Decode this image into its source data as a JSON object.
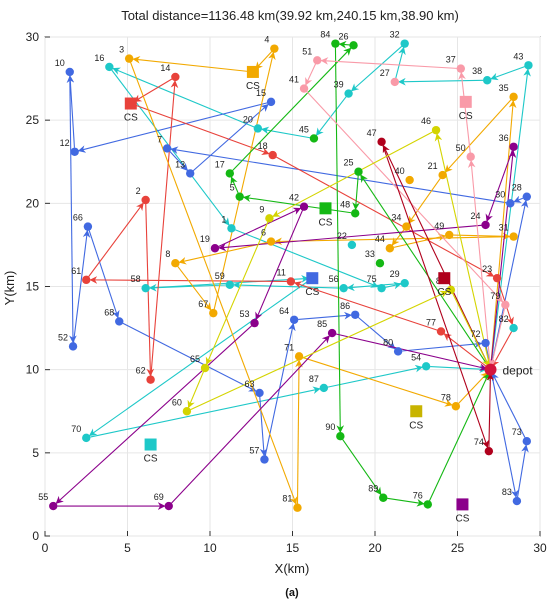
{
  "chart_data": {
    "type": "scatter",
    "title": "Total distance=1136.48 km(39.92 km,240.15 km,38.90 km)",
    "xlabel": "X(km)",
    "ylabel": "Y(km)",
    "caption": "(a)",
    "xlim": [
      0,
      30
    ],
    "ylim": [
      0,
      30
    ],
    "xticks": [
      0,
      5,
      10,
      15,
      20,
      25,
      30
    ],
    "yticks": [
      0,
      5,
      10,
      15,
      20,
      25,
      30
    ],
    "depot": {
      "label": "depot",
      "x": 27.0,
      "y": 10.0,
      "color": "#d4143c"
    },
    "charging_stations": [
      {
        "label": "CS",
        "x": 12.6,
        "y": 27.9,
        "color": "#f2a900"
      },
      {
        "label": "CS",
        "x": 5.2,
        "y": 26.0,
        "color": "#e8423b"
      },
      {
        "label": "CS",
        "x": 25.5,
        "y": 26.1,
        "color": "#f99aa8"
      },
      {
        "label": "CS",
        "x": 17.0,
        "y": 19.7,
        "color": "#14b814"
      },
      {
        "label": "CS",
        "x": 16.2,
        "y": 15.5,
        "color": "#4169e1"
      },
      {
        "label": "CS",
        "x": 24.2,
        "y": 15.5,
        "color": "#b0001c"
      },
      {
        "label": "CS",
        "x": 22.5,
        "y": 7.5,
        "color": "#c8b400"
      },
      {
        "label": "CS",
        "x": 6.4,
        "y": 5.5,
        "color": "#1ec8c8"
      },
      {
        "label": "CS",
        "x": 25.3,
        "y": 1.9,
        "color": "#8b008b"
      }
    ],
    "customers": [
      {
        "id": "1",
        "x": 11.3,
        "y": 18.5,
        "color": "#1ec8c8"
      },
      {
        "id": "2",
        "x": 6.1,
        "y": 20.2,
        "color": "#e8423b"
      },
      {
        "id": "3",
        "x": 5.1,
        "y": 28.7,
        "color": "#f2a900"
      },
      {
        "id": "4",
        "x": 13.9,
        "y": 29.3,
        "color": "#f2a900"
      },
      {
        "id": "5",
        "x": 11.8,
        "y": 20.4,
        "color": "#14b814"
      },
      {
        "id": "6",
        "x": 13.7,
        "y": 17.7,
        "color": "#f2a900"
      },
      {
        "id": "7",
        "x": 7.4,
        "y": 23.3,
        "color": "#4169e1"
      },
      {
        "id": "8",
        "x": 7.9,
        "y": 16.4,
        "color": "#f2a900"
      },
      {
        "id": "9",
        "x": 13.6,
        "y": 19.1,
        "color": "#d4d400"
      },
      {
        "id": "10",
        "x": 1.5,
        "y": 27.9,
        "color": "#4169e1"
      },
      {
        "id": "11",
        "x": 14.9,
        "y": 15.3,
        "color": "#e8423b"
      },
      {
        "id": "12",
        "x": 1.8,
        "y": 23.1,
        "color": "#4169e1"
      },
      {
        "id": "13",
        "x": 8.8,
        "y": 21.8,
        "color": "#4169e1"
      },
      {
        "id": "14",
        "x": 7.9,
        "y": 27.6,
        "color": "#e8423b"
      },
      {
        "id": "15",
        "x": 13.7,
        "y": 26.1,
        "color": "#4169e1"
      },
      {
        "id": "16",
        "x": 3.9,
        "y": 28.2,
        "color": "#1ec8c8"
      },
      {
        "id": "17",
        "x": 11.2,
        "y": 21.8,
        "color": "#14b814"
      },
      {
        "id": "18",
        "x": 13.8,
        "y": 22.9,
        "color": "#e8423b"
      },
      {
        "id": "19",
        "x": 10.3,
        "y": 17.3,
        "color": "#8b008b"
      },
      {
        "id": "20",
        "x": 12.9,
        "y": 24.5,
        "color": "#1ec8c8"
      },
      {
        "id": "21",
        "x": 24.1,
        "y": 21.7,
        "color": "#f2a900"
      },
      {
        "id": "22",
        "x": 18.6,
        "y": 17.5,
        "color": "#1ec8c8"
      },
      {
        "id": "23",
        "x": 27.4,
        "y": 15.5,
        "color": "#e8423b"
      },
      {
        "id": "24",
        "x": 26.7,
        "y": 18.7,
        "color": "#8b008b"
      },
      {
        "id": "25",
        "x": 19.0,
        "y": 21.9,
        "color": "#14b814"
      },
      {
        "id": "26",
        "x": 18.7,
        "y": 29.5,
        "color": "#14b814"
      },
      {
        "id": "27",
        "x": 21.2,
        "y": 27.3,
        "color": "#f99aa8"
      },
      {
        "id": "28",
        "x": 29.2,
        "y": 20.4,
        "color": "#4169e1"
      },
      {
        "id": "29",
        "x": 21.8,
        "y": 15.2,
        "color": "#1ec8c8"
      },
      {
        "id": "30",
        "x": 28.2,
        "y": 20.0,
        "color": "#4169e1"
      },
      {
        "id": "31",
        "x": 28.4,
        "y": 18.0,
        "color": "#f2a900"
      },
      {
        "id": "32",
        "x": 21.8,
        "y": 29.6,
        "color": "#1ec8c8"
      },
      {
        "id": "33",
        "x": 20.3,
        "y": 16.4,
        "color": "#14b814"
      },
      {
        "id": "34",
        "x": 21.9,
        "y": 18.6,
        "color": "#f2a900"
      },
      {
        "id": "35",
        "x": 28.4,
        "y": 26.4,
        "color": "#f2a900"
      },
      {
        "id": "36",
        "x": 28.4,
        "y": 23.4,
        "color": "#8b008b"
      },
      {
        "id": "37",
        "x": 25.2,
        "y": 28.1,
        "color": "#f99aa8"
      },
      {
        "id": "38",
        "x": 26.8,
        "y": 27.4,
        "color": "#1ec8c8"
      },
      {
        "id": "39",
        "x": 18.4,
        "y": 26.6,
        "color": "#1ec8c8"
      },
      {
        "id": "40",
        "x": 22.1,
        "y": 21.4,
        "color": "#f2a900"
      },
      {
        "id": "41",
        "x": 15.7,
        "y": 26.9,
        "color": "#f99aa8"
      },
      {
        "id": "42",
        "x": 15.7,
        "y": 19.8,
        "color": "#8b008b"
      },
      {
        "id": "43",
        "x": 29.3,
        "y": 28.3,
        "color": "#1ec8c8"
      },
      {
        "id": "44",
        "x": 20.9,
        "y": 17.3,
        "color": "#f2a900"
      },
      {
        "id": "45",
        "x": 16.3,
        "y": 23.9,
        "color": "#14b814"
      },
      {
        "id": "46",
        "x": 23.7,
        "y": 24.4,
        "color": "#d4d400"
      },
      {
        "id": "47",
        "x": 20.4,
        "y": 23.7,
        "color": "#b0001c"
      },
      {
        "id": "48",
        "x": 18.8,
        "y": 19.4,
        "color": "#14b814"
      },
      {
        "id": "49",
        "x": 24.5,
        "y": 18.1,
        "color": "#f2a900"
      },
      {
        "id": "50",
        "x": 25.8,
        "y": 22.8,
        "color": "#f99aa8"
      },
      {
        "id": "51",
        "x": 16.5,
        "y": 28.6,
        "color": "#f99aa8"
      },
      {
        "id": "52",
        "x": 1.7,
        "y": 11.4,
        "color": "#4169e1"
      },
      {
        "id": "53",
        "x": 12.7,
        "y": 12.8,
        "color": "#8b008b"
      },
      {
        "id": "54",
        "x": 23.1,
        "y": 10.2,
        "color": "#1ec8c8"
      },
      {
        "id": "55",
        "x": 0.5,
        "y": 1.8,
        "color": "#8b008b"
      },
      {
        "id": "56",
        "x": 18.1,
        "y": 14.9,
        "color": "#1ec8c8"
      },
      {
        "id": "57",
        "x": 13.3,
        "y": 4.6,
        "color": "#4169e1"
      },
      {
        "id": "58",
        "x": 6.1,
        "y": 14.9,
        "color": "#1ec8c8"
      },
      {
        "id": "59",
        "x": 11.2,
        "y": 15.1,
        "color": "#1ec8c8"
      },
      {
        "id": "60",
        "x": 8.6,
        "y": 7.5,
        "color": "#d4d400"
      },
      {
        "id": "61",
        "x": 2.5,
        "y": 15.4,
        "color": "#e8423b"
      },
      {
        "id": "62",
        "x": 6.4,
        "y": 9.4,
        "color": "#e8423b"
      },
      {
        "id": "63",
        "x": 13.0,
        "y": 8.6,
        "color": "#4169e1"
      },
      {
        "id": "64",
        "x": 15.1,
        "y": 13.0,
        "color": "#4169e1"
      },
      {
        "id": "65",
        "x": 9.7,
        "y": 10.1,
        "color": "#d4d400"
      },
      {
        "id": "66",
        "x": 2.6,
        "y": 18.6,
        "color": "#4169e1"
      },
      {
        "id": "67",
        "x": 10.2,
        "y": 13.4,
        "color": "#f2a900"
      },
      {
        "id": "68",
        "x": 4.5,
        "y": 12.9,
        "color": "#4169e1"
      },
      {
        "id": "69",
        "x": 7.5,
        "y": 1.8,
        "color": "#8b008b"
      },
      {
        "id": "70",
        "x": 2.5,
        "y": 5.9,
        "color": "#1ec8c8"
      },
      {
        "id": "71",
        "x": 15.4,
        "y": 10.8,
        "color": "#f2a900"
      },
      {
        "id": "72",
        "x": 26.7,
        "y": 11.6,
        "color": "#4169e1"
      },
      {
        "id": "73",
        "x": 29.2,
        "y": 5.7,
        "color": "#4169e1"
      },
      {
        "id": "74",
        "x": 26.9,
        "y": 5.1,
        "color": "#b0001c"
      },
      {
        "id": "75",
        "x": 20.4,
        "y": 14.9,
        "color": "#1ec8c8"
      },
      {
        "id": "76",
        "x": 23.2,
        "y": 1.9,
        "color": "#14b814"
      },
      {
        "id": "77",
        "x": 24.0,
        "y": 12.3,
        "color": "#e8423b"
      },
      {
        "id": "78",
        "x": 24.9,
        "y": 7.8,
        "color": "#f2a900"
      },
      {
        "id": "79",
        "x": 27.9,
        "y": 13.9,
        "color": "#f99aa8"
      },
      {
        "id": "80",
        "x": 21.4,
        "y": 11.1,
        "color": "#4169e1"
      },
      {
        "id": "81",
        "x": 15.3,
        "y": 1.7,
        "color": "#f2a900"
      },
      {
        "id": "82",
        "x": 28.4,
        "y": 12.5,
        "color": "#1ec8c8"
      },
      {
        "id": "83",
        "x": 28.6,
        "y": 2.1,
        "color": "#4169e1"
      },
      {
        "id": "84",
        "x": 17.6,
        "y": 29.6,
        "color": "#14b814"
      },
      {
        "id": "85",
        "x": 17.4,
        "y": 12.2,
        "color": "#8b008b"
      },
      {
        "id": "86",
        "x": 18.8,
        "y": 13.3,
        "color": "#4169e1"
      },
      {
        "id": "87",
        "x": 16.9,
        "y": 8.9,
        "color": "#1ec8c8"
      },
      {
        "id": "88",
        "x": 24.6,
        "y": 14.8,
        "color": "#d4d400"
      },
      {
        "id": "89",
        "x": 20.5,
        "y": 2.3,
        "color": "#14b814"
      },
      {
        "id": "90",
        "x": 17.9,
        "y": 6.0,
        "color": "#14b814"
      }
    ],
    "routes": [
      {
        "color": "#1ec8c8",
        "stops": [
          "depot",
          "43",
          "38",
          "27",
          "32",
          "39",
          "45",
          "20",
          "16",
          "1",
          "75",
          "29",
          "56",
          "59",
          "58",
          "CS5",
          "70",
          "87",
          "54",
          "depot"
        ]
      },
      {
        "color": "#4169e1",
        "stops": [
          "depot",
          "28",
          "30",
          "7",
          "13",
          "15",
          "12",
          "10",
          "52",
          "66",
          "68",
          "63",
          "57",
          "64",
          "86",
          "80",
          "72",
          "83",
          "73",
          "depot"
        ]
      },
      {
        "color": "#e8423b",
        "stops": [
          "depot",
          "77",
          "11",
          "61",
          "2",
          "62",
          "14",
          "CS2",
          "18",
          "23",
          "82",
          "depot"
        ]
      },
      {
        "color": "#f2a900",
        "stops": [
          "depot",
          "35",
          "21",
          "34",
          "44",
          "49",
          "31",
          "6",
          "8",
          "67",
          "4",
          "CS1",
          "3",
          "81",
          "71",
          "78",
          "depot"
        ]
      },
      {
        "color": "#14b814",
        "stops": [
          "depot",
          "25",
          "48",
          "5",
          "17",
          "26",
          "84",
          "90",
          "89",
          "76",
          "depot"
        ]
      },
      {
        "color": "#8b008b",
        "stops": [
          "depot",
          "36",
          "24",
          "19",
          "42",
          "53",
          "55",
          "69",
          "85",
          "depot"
        ]
      },
      {
        "color": "#f99aa8",
        "stops": [
          "depot",
          "50",
          "37",
          "51",
          "41",
          "79",
          "depot"
        ]
      },
      {
        "color": "#b0001c",
        "stops": [
          "depot",
          "47",
          "74",
          "depot"
        ]
      },
      {
        "color": "#d4d400",
        "stops": [
          "depot",
          "46",
          "9",
          "65",
          "60",
          "88",
          "depot"
        ]
      }
    ]
  }
}
